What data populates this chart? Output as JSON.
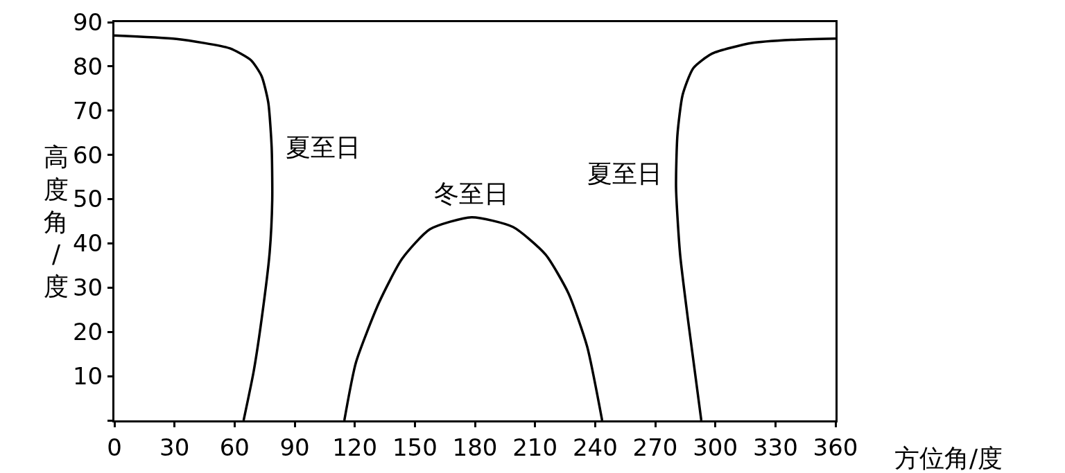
{
  "chart_data": {
    "type": "line",
    "xlabel": "方位角/度",
    "ylabel": "高度角/度",
    "series": [
      {
        "name": "夏至日",
        "color": "#000000",
        "x": [
          0,
          31,
          57.5,
          68.2,
          73.5,
          76.8,
          78.5,
          78.8,
          77.5,
          73.5,
          69.5,
          64.5
        ],
        "values": [
          87,
          86.2,
          84.1,
          81.4,
          77.8,
          71.9,
          61.8,
          49.8,
          37.9,
          22.9,
          11,
          0
        ]
      },
      {
        "name": "冬至日",
        "color": "#000000",
        "x": [
          114.8,
          120.6,
          132.1,
          143.6,
          157.5,
          178.3,
          199,
          215.2,
          226.7,
          236,
          243.5
        ],
        "values": [
          0,
          13.1,
          26.6,
          36.5,
          43.2,
          45.9,
          43.7,
          37.5,
          28.7,
          16.7,
          0
        ]
      },
      {
        "name": "夏至日",
        "color": "#000000",
        "x": [
          293,
          286.4,
          282.4,
          280.4,
          281.1,
          283.7,
          289,
          298.4,
          318.3,
          338.2,
          360
        ],
        "values": [
          0,
          22.6,
          37.6,
          52.6,
          64.6,
          73.6,
          79.6,
          82.9,
          85.3,
          86,
          86.3
        ]
      }
    ],
    "xlim": [
      0,
      360
    ],
    "ylim": [
      0,
      90
    ],
    "xticks": [
      0,
      30,
      60,
      90,
      120,
      150,
      180,
      210,
      240,
      270,
      300,
      330,
      360
    ],
    "yticks": [
      {
        "value": 0,
        "label": null
      },
      10,
      20,
      30,
      40,
      50,
      60,
      70,
      80,
      90
    ],
    "marker": "none",
    "line_style": "solid"
  }
}
